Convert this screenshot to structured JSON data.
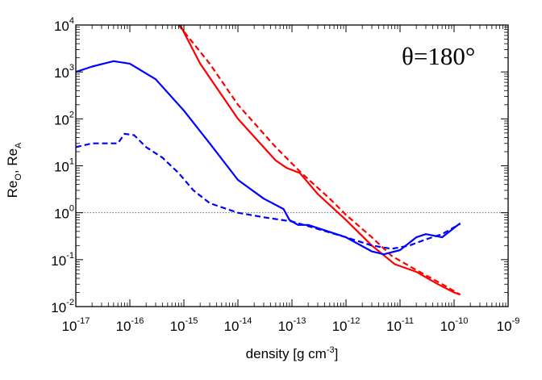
{
  "chart_data": {
    "type": "line",
    "title": "",
    "annotation": "θ=180°",
    "xlabel": {
      "text": "density [g cm",
      "sup": "-3",
      "close": "]"
    },
    "ylabel": {
      "a": "Re",
      "a_sub": "O",
      "sep": ", ",
      "b": "Re",
      "b_sub": "A"
    },
    "x_scale": "log",
    "y_scale": "log",
    "xlim": [
      1e-17,
      1e-09
    ],
    "ylim": [
      0.01,
      10000
    ],
    "x_ticks": [
      {
        "base": "10",
        "exp": "-17",
        "value": 1e-17
      },
      {
        "base": "10",
        "exp": "-16",
        "value": 1e-16
      },
      {
        "base": "10",
        "exp": "-15",
        "value": 1e-15
      },
      {
        "base": "10",
        "exp": "-14",
        "value": 1e-14
      },
      {
        "base": "10",
        "exp": "-13",
        "value": 1e-13
      },
      {
        "base": "10",
        "exp": "-12",
        "value": 1e-12
      },
      {
        "base": "10",
        "exp": "-11",
        "value": 1e-11
      },
      {
        "base": "10",
        "exp": "-10",
        "value": 1e-10
      },
      {
        "base": "10",
        "exp": "-9",
        "value": 1e-09
      }
    ],
    "y_ticks": [
      {
        "base": "10",
        "exp": "-2",
        "value": 0.01
      },
      {
        "base": "10",
        "exp": "-1",
        "value": 0.1
      },
      {
        "base": "10",
        "exp": "0",
        "value": 1
      },
      {
        "base": "10",
        "exp": "1",
        "value": 10
      },
      {
        "base": "10",
        "exp": "2",
        "value": 100
      },
      {
        "base": "10",
        "exp": "3",
        "value": 1000
      },
      {
        "base": "10",
        "exp": "4",
        "value": 10000
      }
    ],
    "reference_line": {
      "y": 1,
      "style": "dotted",
      "color": "#555555"
    },
    "series": [
      {
        "color": "#ff0000",
        "dash": "solid",
        "points": [
          [
            8.5e-16,
            10000
          ],
          [
            2e-15,
            1500
          ],
          [
            1e-14,
            100
          ],
          [
            5e-14,
            13
          ],
          [
            8e-14,
            9
          ],
          [
            1.4e-13,
            7
          ],
          [
            3e-13,
            2.5
          ],
          [
            1e-12,
            0.7
          ],
          [
            3e-12,
            0.2
          ],
          [
            8e-12,
            0.08
          ],
          [
            2e-11,
            0.055
          ],
          [
            5e-11,
            0.03
          ],
          [
            1e-10,
            0.02
          ],
          [
            1.3e-10,
            0.018
          ]
        ]
      },
      {
        "color": "#ff0000",
        "dash": "dashed",
        "points": [
          [
            8e-16,
            10000
          ],
          [
            3e-15,
            1500
          ],
          [
            1e-14,
            200
          ],
          [
            5e-14,
            25
          ],
          [
            1.5e-13,
            7
          ],
          [
            5e-13,
            2
          ],
          [
            1e-12,
            0.9
          ],
          [
            3e-12,
            0.3
          ],
          [
            7e-12,
            0.12
          ],
          [
            2e-11,
            0.06
          ],
          [
            6e-11,
            0.03
          ],
          [
            1.3e-10,
            0.018
          ]
        ]
      },
      {
        "color": "#0000ff",
        "dash": "solid",
        "points": [
          [
            1e-17,
            1000
          ],
          [
            2e-17,
            1300
          ],
          [
            5e-17,
            1700
          ],
          [
            1e-16,
            1500
          ],
          [
            3e-16,
            700
          ],
          [
            1e-15,
            150
          ],
          [
            3e-15,
            30
          ],
          [
            1e-14,
            5
          ],
          [
            3e-14,
            2
          ],
          [
            7e-14,
            1.2
          ],
          [
            9e-14,
            0.7
          ],
          [
            1.3e-13,
            0.55
          ],
          [
            2e-13,
            0.55
          ],
          [
            1e-12,
            0.3
          ],
          [
            3e-12,
            0.15
          ],
          [
            5e-12,
            0.13
          ],
          [
            1e-11,
            0.16
          ],
          [
            2e-11,
            0.3
          ],
          [
            3e-11,
            0.35
          ],
          [
            6e-11,
            0.3
          ],
          [
            1.3e-10,
            0.6
          ]
        ]
      },
      {
        "color": "#0000ff",
        "dash": "dashed",
        "points": [
          [
            1e-17,
            25
          ],
          [
            2e-17,
            30
          ],
          [
            6e-17,
            30
          ],
          [
            8e-17,
            48
          ],
          [
            1.2e-16,
            45
          ],
          [
            2e-16,
            25
          ],
          [
            4e-16,
            15
          ],
          [
            8e-16,
            7
          ],
          [
            1.5e-15,
            3
          ],
          [
            3e-15,
            1.6
          ],
          [
            1e-14,
            1.0
          ],
          [
            3e-14,
            0.8
          ],
          [
            1e-13,
            0.65
          ],
          [
            3e-13,
            0.45
          ],
          [
            1e-12,
            0.3
          ],
          [
            3e-12,
            0.2
          ],
          [
            7e-12,
            0.17
          ],
          [
            1.5e-11,
            0.2
          ],
          [
            3e-11,
            0.27
          ],
          [
            6e-11,
            0.35
          ],
          [
            1.3e-10,
            0.58
          ]
        ]
      }
    ]
  }
}
